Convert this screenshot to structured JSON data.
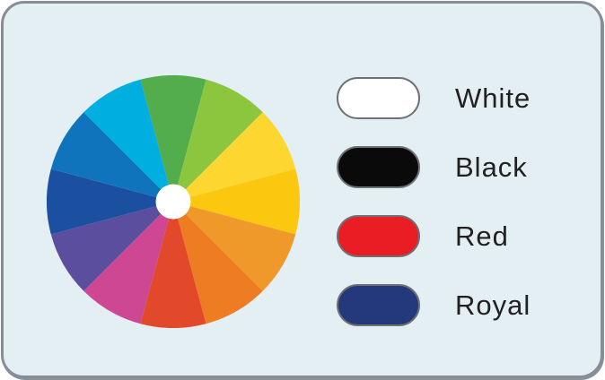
{
  "panel": {
    "background": "#E4EFF4",
    "border_color": "#878D97",
    "outer_background": "#FFFFFF"
  },
  "wheel": {
    "segment_count": 12,
    "start_angle_deg": -15,
    "outer_radius": 141,
    "inner_radius": 19.5,
    "center_color": "#FFFFFF",
    "segments": [
      {
        "name": "green",
        "color": "#53AD4C"
      },
      {
        "name": "yellow-green",
        "color": "#8CC63F"
      },
      {
        "name": "yellow",
        "color": "#FDD62F"
      },
      {
        "name": "golden-yellow",
        "color": "#FBC70F"
      },
      {
        "name": "light-orange",
        "color": "#F0992B"
      },
      {
        "name": "orange",
        "color": "#EE7C22"
      },
      {
        "name": "red-orange",
        "color": "#E2492B"
      },
      {
        "name": "magenta",
        "color": "#CE4793"
      },
      {
        "name": "purple",
        "color": "#5C4E9F"
      },
      {
        "name": "dark-blue",
        "color": "#1B4F9F"
      },
      {
        "name": "blue",
        "color": "#0F74BC"
      },
      {
        "name": "cyan",
        "color": "#00AEDF"
      }
    ]
  },
  "swatches": {
    "border_color": "#6E7174",
    "items": [
      {
        "label": "White",
        "color": "#FFFFFF"
      },
      {
        "label": "Black",
        "color": "#0A0A0B"
      },
      {
        "label": "Red",
        "color": "#EA1C24"
      },
      {
        "label": "Royal",
        "color": "#24397C"
      }
    ]
  }
}
